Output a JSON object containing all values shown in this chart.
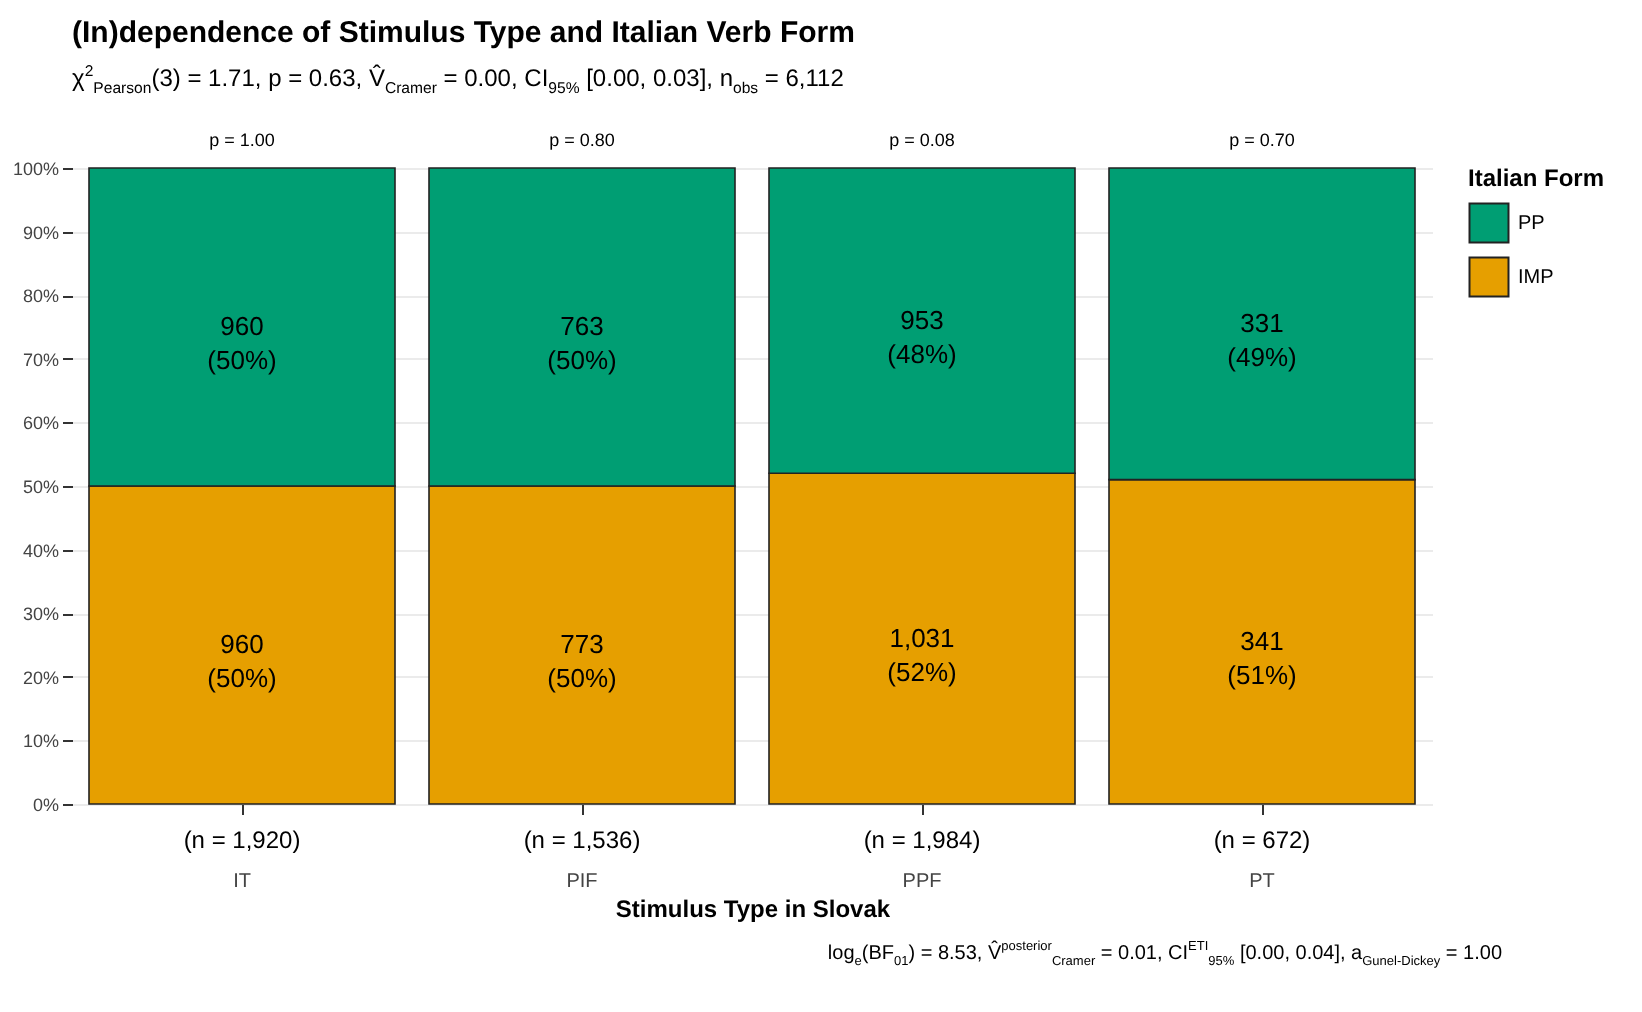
{
  "chart_data": {
    "type": "bar",
    "title": "(In)dependence of Stimulus Type and Italian Verb Form",
    "subtitle": "χ$^{2}$$_{Pearson}$(3) = 1.71, p = 0.63, V̂$_{Cramer}$ = 0.00, CI$_{95%}$ [0.00, 0.03], n$_{obs}$ = 6,112",
    "xlabel": "Stimulus Type in Slovak",
    "legend_title": "Italian Form",
    "categories": [
      "IT",
      "PIF",
      "PPF",
      "PT"
    ],
    "stacked": true,
    "series": [
      {
        "name": "IMP",
        "color": "#e69f00",
        "values": [
          50,
          50,
          52,
          51
        ],
        "value_labels": [
          "960\n(50%)",
          "773\n(50%)",
          "1,031\n(52%)",
          "341\n(51%)"
        ]
      },
      {
        "name": "PP",
        "color": "#009e73",
        "values": [
          50,
          50,
          48,
          49
        ],
        "value_labels": [
          "960\n(50%)",
          "763\n(50%)",
          "953\n(48%)",
          "331\n(49%)"
        ]
      }
    ],
    "ylim": [
      0,
      100
    ],
    "yticks": [
      {
        "value": 0,
        "label": "0%"
      },
      {
        "value": 10,
        "label": "10%"
      },
      {
        "value": 20,
        "label": "20%"
      },
      {
        "value": 30,
        "label": "30%"
      },
      {
        "value": 40,
        "label": "40%"
      },
      {
        "value": 50,
        "label": "50%"
      },
      {
        "value": 60,
        "label": "60%"
      },
      {
        "value": 70,
        "label": "70%"
      },
      {
        "value": 80,
        "label": "80%"
      },
      {
        "value": 90,
        "label": "90%"
      },
      {
        "value": 100,
        "label": "100%"
      }
    ],
    "grid": "y",
    "legend": "right",
    "annotations": [
      {
        "text": "p = 1.00",
        "x": "IT",
        "y": 100
      },
      {
        "text": "p = 0.80",
        "x": "PIF",
        "y": 100
      },
      {
        "text": "p = 0.08",
        "x": "PPF",
        "y": 100
      },
      {
        "text": "p = 0.70",
        "x": "PT",
        "y": 100
      },
      {
        "text": "(n = 1,920)",
        "x": "IT",
        "y": 0
      },
      {
        "text": "(n = 1,536)",
        "x": "PIF",
        "y": 0
      },
      {
        "text": "(n = 1,984)",
        "x": "PPF",
        "y": 0
      },
      {
        "text": "(n = 672)",
        "x": "PT",
        "y": 0
      },
      "log$_{e}$(BF$_{01}$) = 8.53, V̂$^{posterior}$$_{Cramer}$ = 0.01, CI$^{ETI}$$_{95%}$ [0.00, 0.04], a$_{Gunel-Dickey}$ = 1.00"
    ]
  }
}
